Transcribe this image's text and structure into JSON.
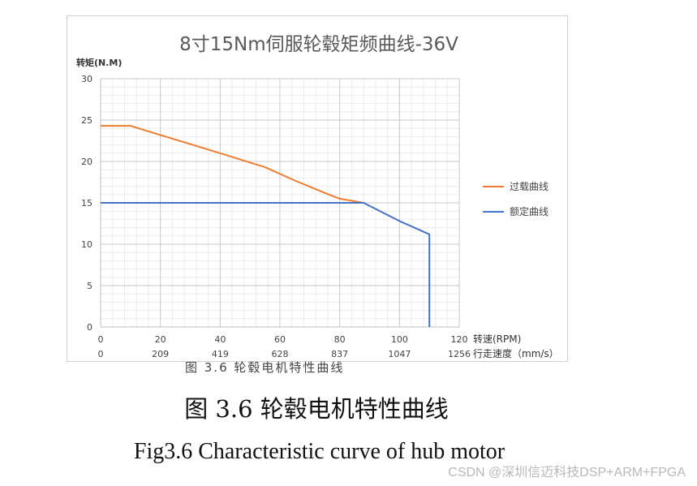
{
  "chart_data": {
    "type": "line",
    "title": "8寸15Nm伺服轮毂矩频曲线-36V",
    "ylabel": "转矩(N.M)",
    "xlabel": "转速(RPM)",
    "x2label": "行走速度（mm/s）",
    "xlim": [
      0,
      120
    ],
    "ylim": [
      0,
      30
    ],
    "x_ticks": [
      0,
      20,
      40,
      60,
      80,
      100,
      120
    ],
    "x2_tick_labels": [
      "0",
      "209",
      "419",
      "628",
      "837",
      "1047",
      "1256"
    ],
    "y_ticks": [
      0,
      5,
      10,
      15,
      20,
      25,
      30
    ],
    "grid": true,
    "legend_position": "right",
    "series": [
      {
        "name": "过载曲线",
        "color": "#ED7D31",
        "points": [
          [
            0,
            24.3
          ],
          [
            10,
            24.3
          ],
          [
            20,
            23.2
          ],
          [
            40,
            21.0
          ],
          [
            55,
            19.3
          ],
          [
            65,
            17.7
          ],
          [
            75,
            16.2
          ],
          [
            80,
            15.5
          ],
          [
            88,
            15.0
          ]
        ]
      },
      {
        "name": "额定曲线",
        "color": "#4472C4",
        "points": [
          [
            0,
            15.0
          ],
          [
            88,
            15.0
          ],
          [
            100,
            12.8
          ],
          [
            110,
            11.2
          ],
          [
            110,
            0
          ]
        ]
      }
    ]
  },
  "caption": {
    "cn": "图 3.6  轮毂电机特性曲线",
    "en": "Fig3.6 Characteristic curve of hub motor",
    "cut_off": "图 3.6 轮毂电机特性曲线"
  },
  "watermark": "CSDN @深圳信迈科技DSP+ARM+FPGA"
}
